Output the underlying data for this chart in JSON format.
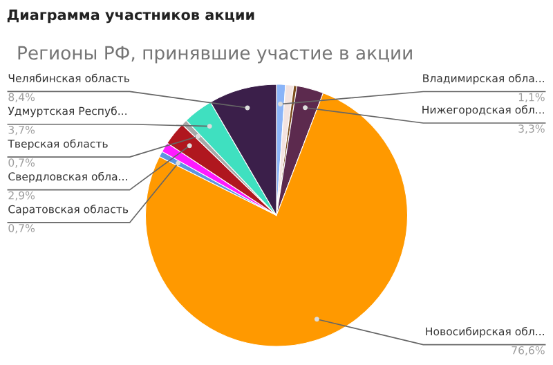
{
  "chart_data": {
    "type": "pie",
    "title": "Диаграмма участников акции",
    "subtitle": "Регионы РФ, принявшие участие в акции",
    "categories": [
      "Владимирская обла...",
      null,
      null,
      "Нижегородская обл...",
      "Новосибирская обл...",
      "Саратовская область",
      null,
      "Свердловская обла...",
      "Тверская область",
      "Удмуртская Респуб...",
      "Челябинская область"
    ],
    "values": [
      1.1,
      1.0,
      0.4,
      3.3,
      76.6,
      0.7,
      1.2,
      2.9,
      0.7,
      3.7,
      8.4
    ],
    "colors": [
      "#8ab4f8",
      "#f3e3e0",
      "#7f4f1f",
      "#5c2a4e",
      "#ff9900",
      "#5b95e0",
      "#ff1aff",
      "#b0171f",
      "#a8a8a8",
      "#3fe0c0",
      "#3b1f4a"
    ],
    "value_labels": [
      "1,1%",
      null,
      null,
      "3,3%",
      "76,6%",
      "0,7%",
      null,
      "2,9%",
      "0,7%",
      "3,7%",
      "8,4%"
    ]
  }
}
